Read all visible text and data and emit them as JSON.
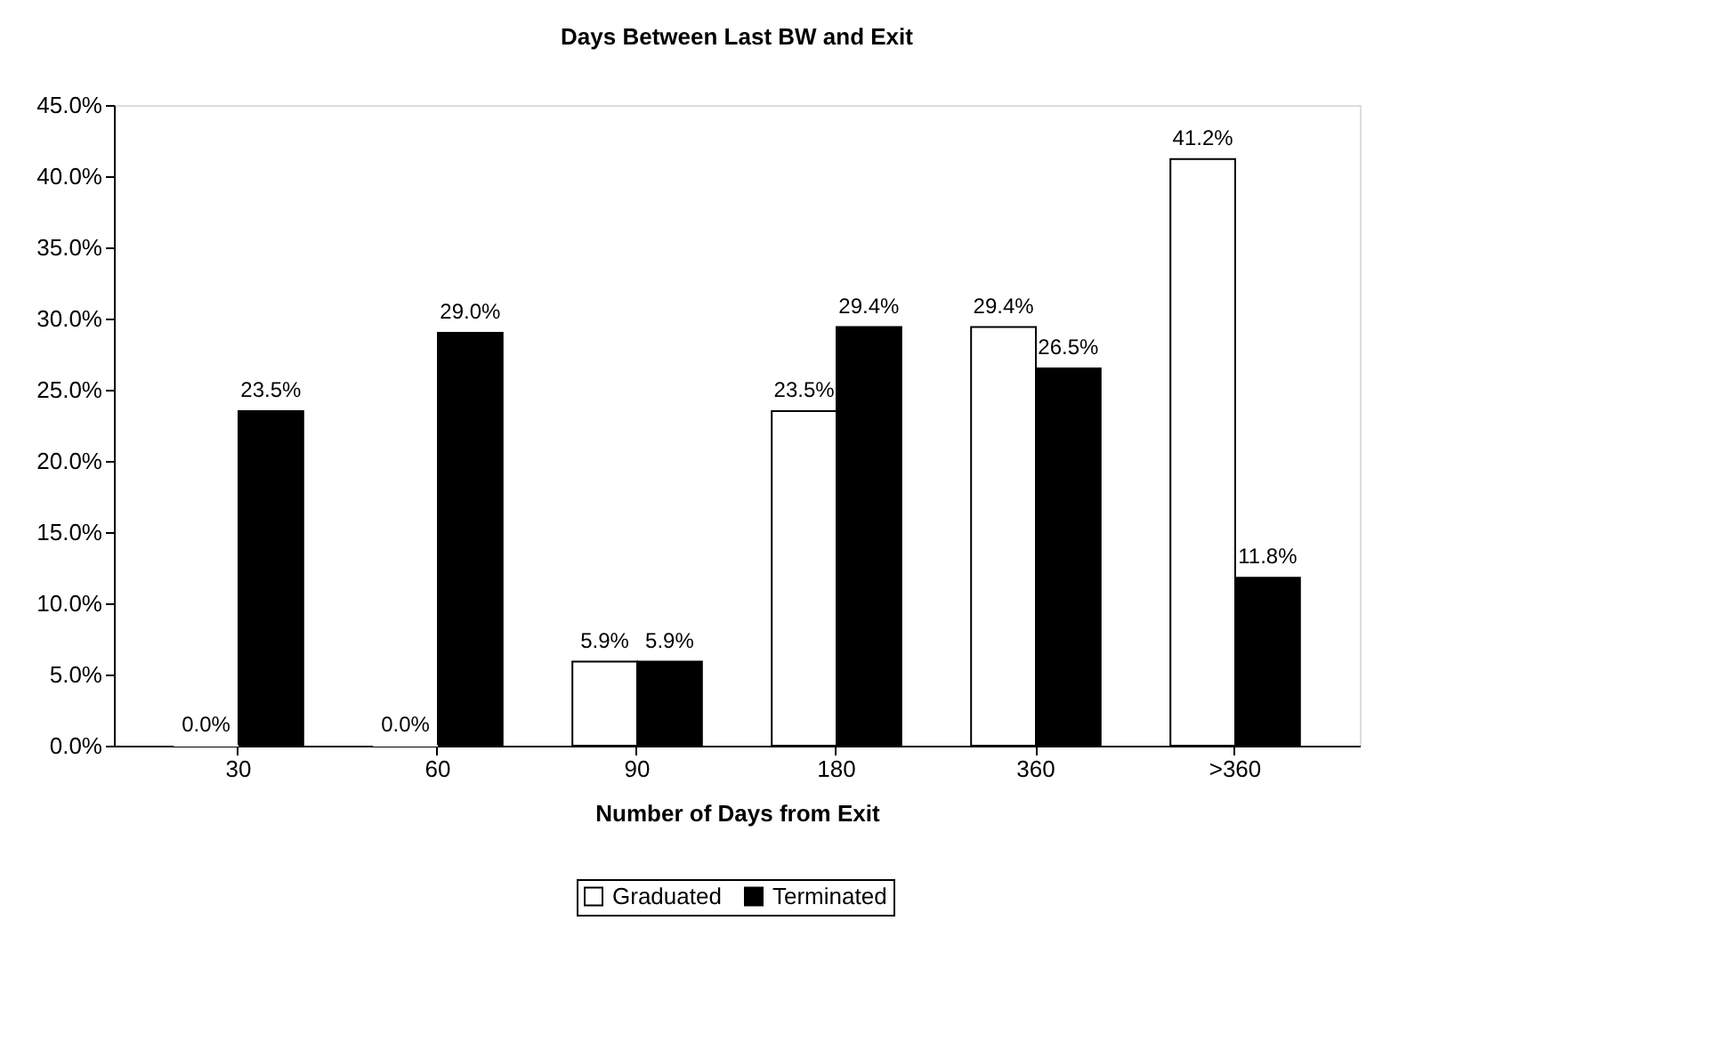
{
  "chart_data": {
    "type": "bar",
    "title": "Days Between Last BW and Exit",
    "xlabel": "Number of Days from Exit",
    "categories": [
      "30",
      "60",
      "90",
      "180",
      "360",
      ">360"
    ],
    "series": [
      {
        "name": "Graduated",
        "color": "#ffffff",
        "values": [
          0.0,
          0.0,
          5.9,
          23.5,
          29.4,
          41.2
        ],
        "value_labels": [
          "0.0%",
          "0.0%",
          "5.9%",
          "23.5%",
          "29.4%",
          "41.2%"
        ]
      },
      {
        "name": "Terminated",
        "color": "#000000",
        "values": [
          23.5,
          29.0,
          5.9,
          29.4,
          26.5,
          11.8
        ],
        "value_labels": [
          "23.5%",
          "29.0%",
          "5.9%",
          "29.4%",
          "26.5%",
          "11.8%"
        ]
      }
    ],
    "ylim": [
      0,
      45
    ],
    "yticks": [
      {
        "value": 0,
        "label": "0.0%"
      },
      {
        "value": 5,
        "label": "5.0%"
      },
      {
        "value": 10,
        "label": "10.0%"
      },
      {
        "value": 15,
        "label": "15.0%"
      },
      {
        "value": 20,
        "label": "20.0%"
      },
      {
        "value": 25,
        "label": "25.0%"
      },
      {
        "value": 30,
        "label": "30.0%"
      },
      {
        "value": 35,
        "label": "35.0%"
      },
      {
        "value": 40,
        "label": "40.0%"
      },
      {
        "value": 45,
        "label": "45.0%"
      }
    ],
    "grid": false,
    "legend": "bottom"
  }
}
